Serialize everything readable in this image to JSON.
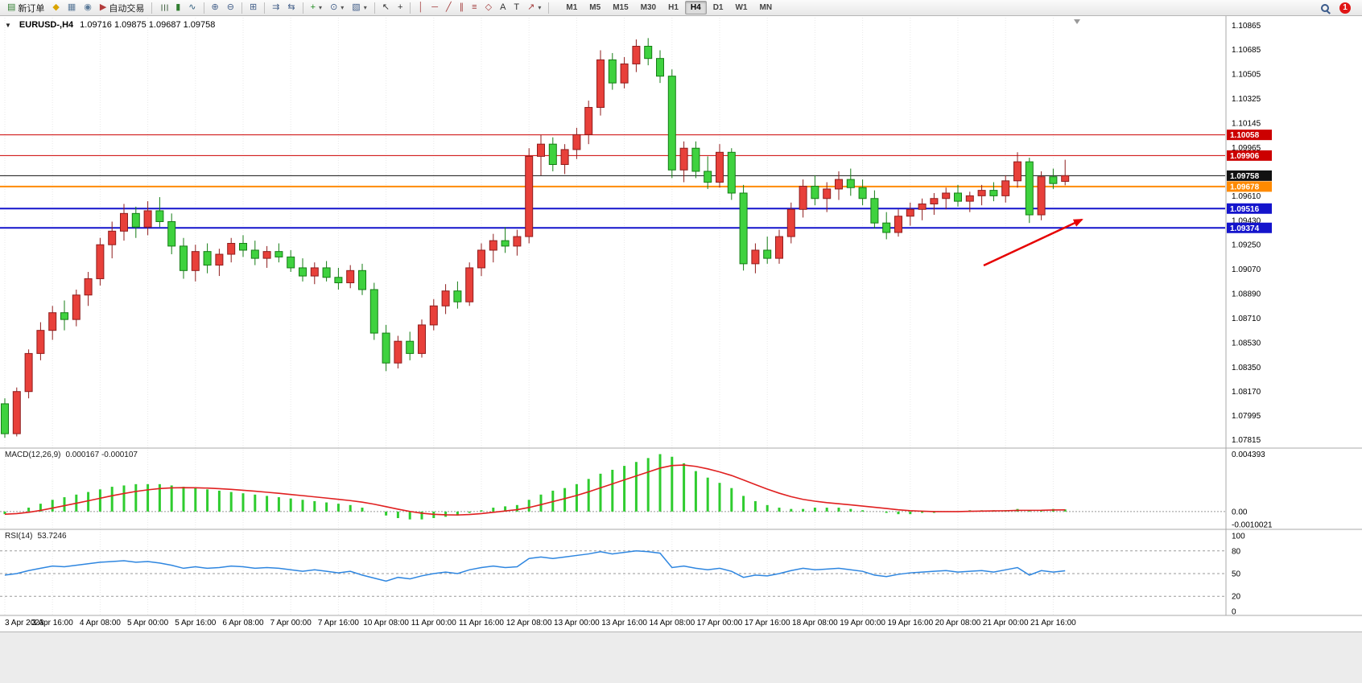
{
  "toolbar": {
    "groups": [
      {
        "items": [
          {
            "name": "new-order-button",
            "icon": "new-order-icon",
            "glyph": "▤",
            "color": "#2f7d2f",
            "label": "新订单"
          },
          {
            "name": "metaeditor-button",
            "icon": "metaeditor-icon",
            "glyph": "◆",
            "color": "#d9a400"
          },
          {
            "name": "profiles-button",
            "icon": "profiles-icon",
            "glyph": "▦",
            "color": "#5b7a99"
          },
          {
            "name": "market-watch-button",
            "icon": "market-watch-icon",
            "glyph": "◉",
            "color": "#5b7a99"
          },
          {
            "name": "autotrading-button",
            "icon": "autotrading-icon",
            "glyph": "▶",
            "color": "#b23b3b",
            "label": "自动交易"
          }
        ]
      },
      {
        "items": [
          {
            "name": "bar-chart-button",
            "icon": "bar-chart-icon",
            "glyph": "☰",
            "color": "#4c6b4c",
            "rotate": true
          },
          {
            "name": "candlestick-button",
            "icon": "candlestick-icon",
            "glyph": "▮",
            "color": "#2f7d2f"
          },
          {
            "name": "line-chart-button",
            "icon": "line-chart-icon",
            "glyph": "∿",
            "color": "#2f5d7d"
          }
        ]
      },
      {
        "items": [
          {
            "name": "zoom-in-button",
            "icon": "zoom-in-icon",
            "glyph": "⊕",
            "color": "#44608a"
          },
          {
            "name": "zoom-out-button",
            "icon": "zoom-out-icon",
            "glyph": "⊖",
            "color": "#44608a"
          }
        ]
      },
      {
        "items": [
          {
            "name": "tile-windows-button",
            "icon": "tile-windows-icon",
            "glyph": "⊞",
            "color": "#44608a"
          }
        ]
      },
      {
        "items": [
          {
            "name": "auto-scroll-button",
            "icon": "auto-scroll-icon",
            "glyph": "⇉",
            "color": "#44608a"
          },
          {
            "name": "chart-shift-button",
            "icon": "chart-shift-icon",
            "glyph": "⇆",
            "color": "#44608a"
          }
        ]
      },
      {
        "items": [
          {
            "name": "indicators-button",
            "icon": "indicators-icon",
            "glyph": "+",
            "color": "#1d8a1d",
            "dropdown": true
          },
          {
            "name": "periods-button",
            "icon": "periods-icon",
            "glyph": "⊙",
            "color": "#44608a",
            "dropdown": true
          },
          {
            "name": "template-button",
            "icon": "template-icon",
            "glyph": "▧",
            "color": "#44608a",
            "dropdown": true
          }
        ]
      },
      {
        "items": [
          {
            "name": "cursor-button",
            "icon": "cursor-icon",
            "glyph": "↖",
            "color": "#333333"
          },
          {
            "name": "crosshair-button",
            "icon": "crosshair-icon",
            "glyph": "+",
            "color": "#333333"
          }
        ]
      },
      {
        "items": [
          {
            "name": "vertical-line-button",
            "icon": "vertical-line-icon",
            "glyph": "│",
            "color": "#a33c3c"
          },
          {
            "name": "horizontal-line-button",
            "icon": "horizontal-line-icon",
            "glyph": "─",
            "color": "#a33c3c"
          },
          {
            "name": "trendline-button",
            "icon": "trendline-icon",
            "glyph": "╱",
            "color": "#a33c3c"
          },
          {
            "name": "channel-button",
            "icon": "channel-icon",
            "glyph": "∥",
            "color": "#a33c3c"
          },
          {
            "name": "fibonacci-button",
            "icon": "fibonacci-icon",
            "glyph": "≡",
            "color": "#a33c3c"
          },
          {
            "name": "shapes-button",
            "icon": "shapes-icon",
            "glyph": "◇",
            "color": "#a33c3c"
          },
          {
            "name": "text-button",
            "icon": "text-icon",
            "glyph": "A",
            "color": "#333333"
          },
          {
            "name": "text-label-button",
            "icon": "text-label-icon",
            "glyph": "T",
            "color": "#333333"
          },
          {
            "name": "arrows-button",
            "icon": "arrow-tool-icon",
            "glyph": "↗",
            "color": "#a33c3c",
            "dropdown": true
          }
        ]
      }
    ],
    "timeframes": [
      "M1",
      "M5",
      "M15",
      "M30",
      "H1",
      "H4",
      "D1",
      "W1",
      "MN"
    ],
    "active_timeframe": "H4",
    "notification_count": "1"
  },
  "chart": {
    "collapse_icon": "▼",
    "symbol_period": "EURUSD-,H4",
    "ohlc": "1.09716 1.09875 1.09687 1.09758",
    "price_axis_labels": [
      "1.10865",
      "1.10685",
      "1.10505",
      "1.10325",
      "1.10145",
      "1.09965",
      "1.09610",
      "1.09430",
      "1.09250",
      "1.09070",
      "1.08890",
      "1.08710",
      "1.08530",
      "1.08350",
      "1.08170",
      "1.07995",
      "1.07815"
    ],
    "levels": [
      {
        "label": "1.10058",
        "price": 1.10058,
        "color": "#cc0000",
        "line_width": 1,
        "role": "resistance-line"
      },
      {
        "label": "1.09906",
        "price": 1.09906,
        "color": "#cc0000",
        "line_width": 1,
        "role": "resistance-line"
      },
      {
        "label": "1.09758",
        "price": 1.09758,
        "color": "#111111",
        "line_width": 1,
        "role": "current-price-line"
      },
      {
        "label": "1.09678",
        "price": 1.09678,
        "color": "#ff8a00",
        "line_width": 2,
        "role": "pivot-line"
      },
      {
        "label": "1.09516",
        "price": 1.09516,
        "color": "#1414cc",
        "line_width": 2,
        "role": "support-line"
      },
      {
        "label": "1.09374",
        "price": 1.09374,
        "color": "#1414cc",
        "line_width": 2,
        "role": "support-line"
      }
    ],
    "time_labels": [
      "3 Apr 2023",
      "3 Apr 16:00",
      "4 Apr 08:00",
      "5 Apr 00:00",
      "5 Apr 16:00",
      "6 Apr 08:00",
      "7 Apr 00:00",
      "7 Apr 16:00",
      "10 Apr 08:00",
      "11 Apr 00:00",
      "11 Apr 16:00",
      "12 Apr 08:00",
      "13 Apr 00:00",
      "13 Apr 16:00",
      "14 Apr 08:00",
      "17 Apr 00:00",
      "17 Apr 16:00",
      "18 Apr 08:00",
      "19 Apr 00:00",
      "19 Apr 16:00",
      "20 Apr 08:00",
      "21 Apr 00:00",
      "21 Apr 16:00"
    ],
    "macd": {
      "label": "MACD(12,26,9)",
      "values": "0.000167 -0.000107",
      "scale": [
        "0.004393",
        "0.00",
        "-0.0010021"
      ]
    },
    "rsi": {
      "label": "RSI(14)",
      "value": "53.7246",
      "scale": [
        "100",
        "80",
        "50",
        "20",
        "0"
      ],
      "levels": [
        80,
        50,
        20
      ]
    }
  },
  "annotation": {
    "type": "arrow",
    "color": "#e60000"
  },
  "chart_data": {
    "type": "candlestick",
    "symbol": "EURUSD-",
    "timeframe": "H4",
    "price_range": [
      1.0776,
      1.1092
    ],
    "macd_range": [
      -0.0013,
      0.0048
    ],
    "bull_color": "#e8403a",
    "bull_border": "#8f1d1d",
    "bear_color": "#3fd23f",
    "bear_border": "#157d15",
    "macd_color": "#2fcc2f",
    "macd_signal_color": "#e02020",
    "rsi_color": "#2e86e0",
    "candles": [
      [
        1.0808,
        1.0812,
        1.0783,
        1.0786
      ],
      [
        1.0786,
        1.082,
        1.0784,
        1.0817
      ],
      [
        1.0817,
        1.0848,
        1.0812,
        1.0845
      ],
      [
        1.0845,
        1.0868,
        1.084,
        1.0862
      ],
      [
        1.0862,
        1.088,
        1.0855,
        1.0875
      ],
      [
        1.0875,
        1.0884,
        1.0862,
        1.087
      ],
      [
        1.087,
        1.0892,
        1.0865,
        1.0888
      ],
      [
        1.0888,
        1.0905,
        1.088,
        1.09
      ],
      [
        1.09,
        1.093,
        1.0895,
        1.0925
      ],
      [
        1.0925,
        1.0942,
        1.0915,
        1.0935
      ],
      [
        1.0935,
        1.0955,
        1.0928,
        1.0948
      ],
      [
        1.0948,
        1.0953,
        1.093,
        1.0938
      ],
      [
        1.0938,
        1.0957,
        1.0932,
        1.095
      ],
      [
        1.095,
        1.096,
        1.0938,
        1.0942
      ],
      [
        1.0942,
        1.0948,
        1.0918,
        1.0924
      ],
      [
        1.0924,
        1.093,
        1.09,
        1.0906
      ],
      [
        1.0906,
        1.0925,
        1.0898,
        1.092
      ],
      [
        1.092,
        1.0926,
        1.0904,
        1.091
      ],
      [
        1.091,
        1.0922,
        1.0902,
        1.0918
      ],
      [
        1.0918,
        1.093,
        1.0912,
        1.0926
      ],
      [
        1.0926,
        1.0932,
        1.0916,
        1.0921
      ],
      [
        1.0921,
        1.0928,
        1.091,
        1.0915
      ],
      [
        1.0915,
        1.0924,
        1.0908,
        1.092
      ],
      [
        1.092,
        1.0926,
        1.0912,
        1.0916
      ],
      [
        1.0916,
        1.0921,
        1.0905,
        1.0908
      ],
      [
        1.0908,
        1.0915,
        1.0898,
        1.0902
      ],
      [
        1.0902,
        1.0912,
        1.0896,
        1.0908
      ],
      [
        1.0908,
        1.0913,
        1.0898,
        1.0901
      ],
      [
        1.0901,
        1.0908,
        1.0892,
        1.0897
      ],
      [
        1.0897,
        1.091,
        1.0893,
        1.0906
      ],
      [
        1.0906,
        1.0911,
        1.0888,
        1.0892
      ],
      [
        1.0892,
        1.0897,
        1.0855,
        1.086
      ],
      [
        1.086,
        1.0866,
        1.0832,
        1.0838
      ],
      [
        1.0838,
        1.0858,
        1.0834,
        1.0854
      ],
      [
        1.0854,
        1.0861,
        1.084,
        1.0845
      ],
      [
        1.0845,
        1.087,
        1.0842,
        1.0866
      ],
      [
        1.0866,
        1.0885,
        1.0862,
        1.088
      ],
      [
        1.088,
        1.0896,
        1.0874,
        1.0891
      ],
      [
        1.0891,
        1.0898,
        1.0878,
        1.0883
      ],
      [
        1.0883,
        1.0912,
        1.088,
        1.0908
      ],
      [
        1.0908,
        1.0926,
        1.0902,
        1.0921
      ],
      [
        1.0921,
        1.0933,
        1.0912,
        1.0928
      ],
      [
        1.0928,
        1.0938,
        1.0919,
        1.0924
      ],
      [
        1.0924,
        1.0936,
        1.0917,
        1.0931
      ],
      [
        1.0931,
        1.0996,
        1.0926,
        1.099
      ],
      [
        1.099,
        1.1006,
        1.0976,
        1.0999
      ],
      [
        1.0999,
        1.1004,
        1.0979,
        1.0984
      ],
      [
        1.0984,
        1.0999,
        1.0977,
        1.0995
      ],
      [
        1.0995,
        1.1011,
        1.0988,
        1.1006
      ],
      [
        1.1006,
        1.1031,
        1.0999,
        1.1026
      ],
      [
        1.1026,
        1.1068,
        1.102,
        1.1061
      ],
      [
        1.1061,
        1.1066,
        1.1039,
        1.1044
      ],
      [
        1.1044,
        1.1063,
        1.104,
        1.1058
      ],
      [
        1.1058,
        1.1076,
        1.1052,
        1.1071
      ],
      [
        1.1071,
        1.1077,
        1.1057,
        1.1062
      ],
      [
        1.1062,
        1.1068,
        1.1044,
        1.1049
      ],
      [
        1.1049,
        1.1054,
        1.0974,
        1.098
      ],
      [
        1.098,
        1.1001,
        1.0971,
        1.0996
      ],
      [
        1.0996,
        1.1001,
        1.0974,
        1.0979
      ],
      [
        1.0979,
        1.099,
        1.0966,
        1.0971
      ],
      [
        1.0971,
        1.0999,
        1.0967,
        1.0993
      ],
      [
        1.0993,
        1.0996,
        1.0958,
        1.0963
      ],
      [
        1.0963,
        1.0969,
        1.0906,
        1.0911
      ],
      [
        1.0911,
        1.0926,
        1.0904,
        1.0921
      ],
      [
        1.0921,
        1.0931,
        1.0911,
        1.0915
      ],
      [
        1.0915,
        1.0936,
        1.0911,
        1.0931
      ],
      [
        1.0931,
        1.0956,
        1.0926,
        1.0951
      ],
      [
        1.0951,
        1.0973,
        1.0945,
        1.0968
      ],
      [
        1.0968,
        1.0976,
        1.0954,
        1.0959
      ],
      [
        1.0959,
        1.0971,
        1.0949,
        1.0966
      ],
      [
        1.0966,
        1.0979,
        1.0958,
        1.0973
      ],
      [
        1.0973,
        1.0981,
        1.0961,
        1.0967
      ],
      [
        1.0967,
        1.0973,
        1.0954,
        1.0959
      ],
      [
        1.0959,
        1.0965,
        1.0937,
        1.0941
      ],
      [
        1.0941,
        1.0949,
        1.0929,
        1.0934
      ],
      [
        1.0934,
        1.0951,
        1.0931,
        1.0946
      ],
      [
        1.0946,
        1.0956,
        1.0939,
        1.0951
      ],
      [
        1.0951,
        1.0959,
        1.0943,
        1.0955
      ],
      [
        1.0955,
        1.0963,
        1.0947,
        1.0959
      ],
      [
        1.0959,
        1.0967,
        1.0951,
        1.0963
      ],
      [
        1.0963,
        1.0969,
        1.0953,
        1.0957
      ],
      [
        1.0957,
        1.0964,
        1.0949,
        1.0961
      ],
      [
        1.0961,
        1.0969,
        1.0954,
        1.0965
      ],
      [
        1.0965,
        1.0971,
        1.0957,
        1.0961
      ],
      [
        1.0961,
        1.0976,
        1.0956,
        1.0972
      ],
      [
        1.0972,
        1.0993,
        1.0967,
        1.0986
      ],
      [
        1.0986,
        1.0989,
        1.0941,
        1.0947
      ],
      [
        1.0947,
        1.0979,
        1.0943,
        1.0975
      ],
      [
        1.0975,
        1.0981,
        1.0966,
        1.097
      ],
      [
        1.09716,
        1.09875,
        1.09687,
        1.09758
      ]
    ],
    "macd_values": [
      -0.0002,
      0.0,
      0.0003,
      0.0006,
      0.0009,
      0.0011,
      0.0013,
      0.0015,
      0.0017,
      0.0019,
      0.002,
      0.0021,
      0.0021,
      0.0021,
      0.002,
      0.0019,
      0.0018,
      0.0017,
      0.0016,
      0.0015,
      0.0014,
      0.0013,
      0.0012,
      0.0011,
      0.001,
      0.0009,
      0.0008,
      0.0007,
      0.0006,
      0.0005,
      0.0003,
      0.0,
      -0.0003,
      -0.0005,
      -0.0006,
      -0.0006,
      -0.0005,
      -0.0004,
      -0.0003,
      -0.0001,
      0.0001,
      0.0003,
      0.0004,
      0.0005,
      0.0009,
      0.0013,
      0.0016,
      0.0018,
      0.0021,
      0.0025,
      0.0029,
      0.0032,
      0.0035,
      0.0038,
      0.0041,
      0.0044,
      0.0042,
      0.0037,
      0.0031,
      0.0026,
      0.0022,
      0.0018,
      0.0012,
      0.0008,
      0.0005,
      0.0003,
      0.0002,
      0.0002,
      0.0003,
      0.0003,
      0.0003,
      0.0002,
      0.0001,
      0.0,
      -0.0001,
      -0.0002,
      -0.0002,
      -0.0001,
      -0.0001,
      0.0,
      0.0,
      0.0001,
      0.0001,
      0.0001,
      0.0001,
      0.0002,
      0.0001,
      0.0001,
      0.0002,
      0.000167
    ],
    "rsi_values": [
      48,
      50,
      54,
      57,
      60,
      59,
      61,
      63,
      65,
      66,
      67,
      65,
      66,
      64,
      61,
      57,
      59,
      57,
      58,
      60,
      59,
      57,
      58,
      57,
      55,
      53,
      55,
      53,
      51,
      53,
      48,
      44,
      40,
      45,
      43,
      47,
      50,
      52,
      50,
      55,
      58,
      60,
      58,
      59,
      70,
      72,
      70,
      72,
      74,
      76,
      79,
      76,
      78,
      80,
      79,
      77,
      58,
      60,
      57,
      55,
      57,
      53,
      45,
      48,
      47,
      50,
      54,
      57,
      55,
      56,
      57,
      55,
      53,
      48,
      46,
      49,
      51,
      52,
      53,
      54,
      52,
      53,
      54,
      52,
      55,
      58,
      48,
      54,
      52,
      53.7246
    ]
  }
}
